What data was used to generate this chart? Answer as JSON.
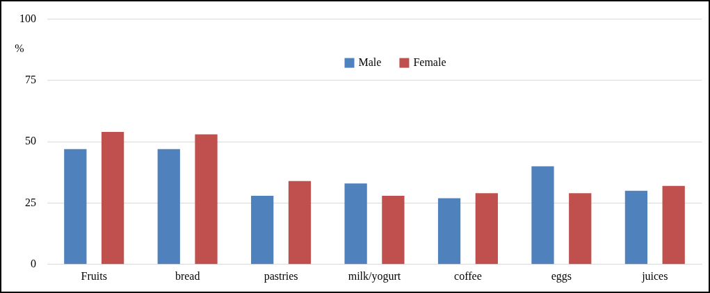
{
  "chart_data": {
    "type": "bar",
    "ylabel": "%",
    "categories": [
      "Fruits",
      "bread",
      "pastries",
      "milk/yogurt",
      "coffee",
      "eggs",
      "juices"
    ],
    "series": [
      {
        "name": "Male",
        "color": "#4f81bd",
        "values": [
          47,
          47,
          28,
          33,
          27,
          40,
          30
        ]
      },
      {
        "name": "Female",
        "color": "#c0504d",
        "values": [
          54,
          53,
          34,
          28,
          29,
          29,
          32
        ]
      }
    ],
    "ylim": [
      0,
      100
    ],
    "yticks": [
      0,
      25,
      50,
      75,
      100
    ],
    "grid": "y",
    "legend": "top"
  }
}
